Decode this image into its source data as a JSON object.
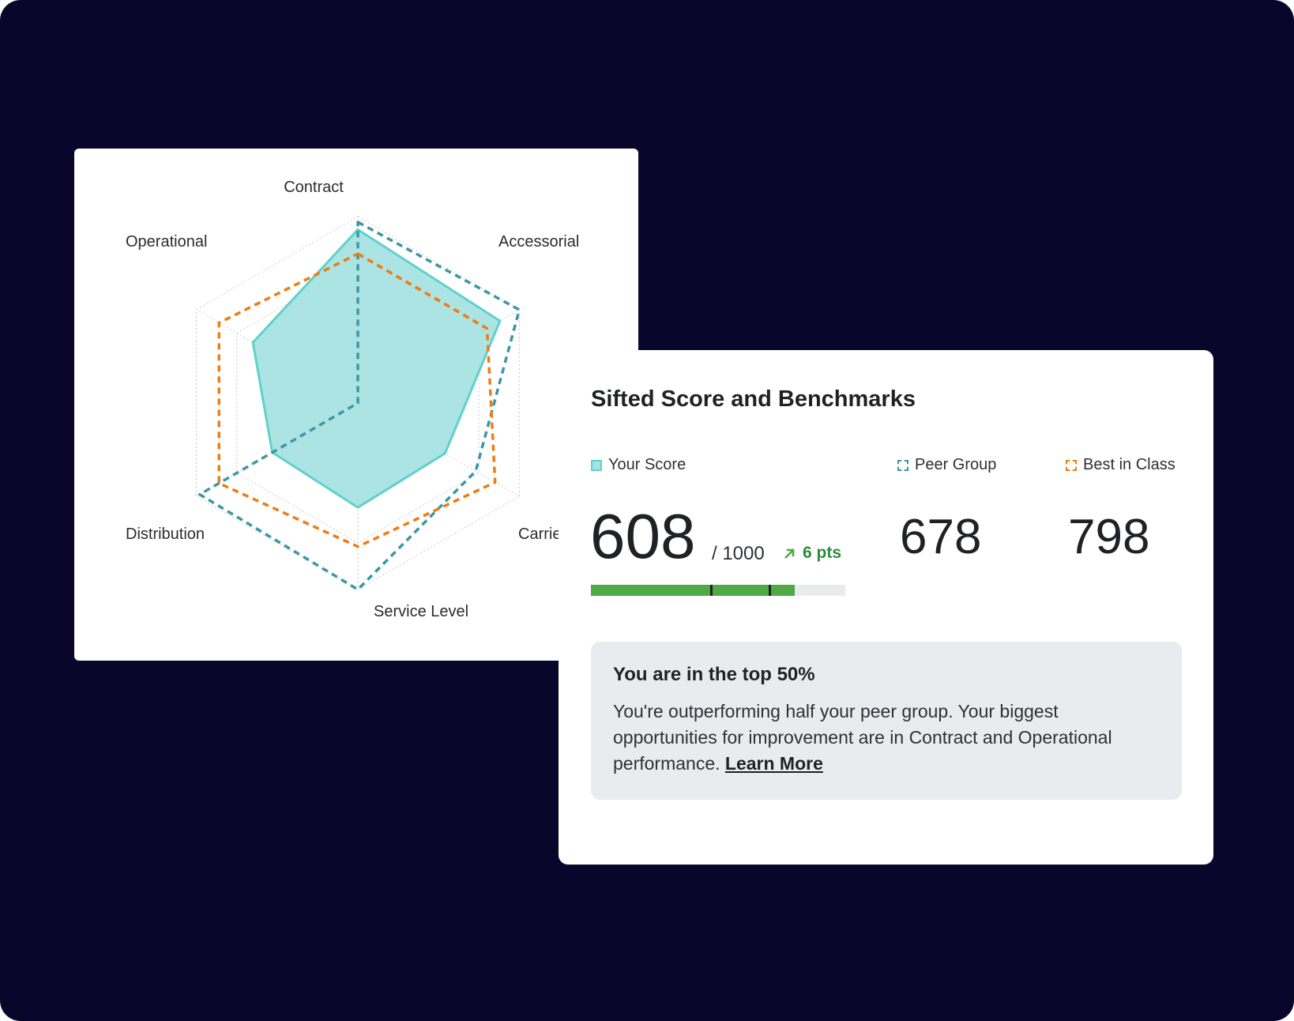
{
  "colors": {
    "background": "#0a062b",
    "your_score": "#5fd1cc",
    "your_score_fill": "#a8e3e1",
    "peer_group": "#3d96a5",
    "best_in_class": "#ee7c14",
    "progress": "#4faa45",
    "trend_up": "#2e8b3a"
  },
  "chart_data": {
    "type": "radar",
    "categories": [
      "Contract",
      "Accessorial",
      "Carrier",
      "Service Level",
      "Distribution",
      "Operational"
    ],
    "category_labels_visible": [
      "Contract",
      "Accessorial",
      "Carrie",
      "Service Level",
      "Distribution",
      "Operational"
    ],
    "series": [
      {
        "name": "Your Score",
        "values": [
          0.93,
          0.88,
          0.54,
          0.56,
          0.53,
          0.65
        ],
        "style": "filled"
      },
      {
        "name": "Peer Group",
        "values": [
          0.97,
          1.0,
          0.73,
          1.0,
          0.98,
          0.0
        ],
        "style": "dashed"
      },
      {
        "name": "Best in Class",
        "values": [
          0.8,
          0.8,
          0.85,
          0.77,
          0.86,
          0.86
        ],
        "style": "dashed"
      }
    ],
    "rings": 4,
    "grid": true,
    "legend": "none"
  },
  "score_card": {
    "title": "Sifted Score and Benchmarks",
    "legend": {
      "your_score": "Your Score",
      "peer_group": "Peer Group",
      "best_in_class": "Best in Class"
    },
    "your_score": "608",
    "max_score": "/ 1000",
    "trend_icon": "arrow-up-right-icon",
    "trend": "6 pts",
    "peer_score": "678",
    "best_score": "798",
    "progress_fraction": 0.8,
    "progress_ticks": [
      0.47,
      0.7
    ],
    "insight": {
      "title": "You are in the top 50%",
      "body": "You're outperforming half your peer group. Your biggest opportunities for improvement are in Contract and Operational performance.",
      "link": "Learn More"
    }
  }
}
